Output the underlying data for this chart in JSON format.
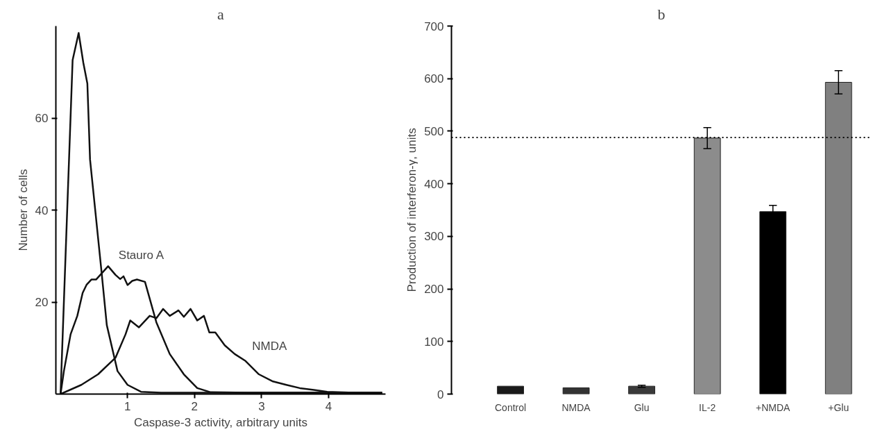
{
  "chart_data": [
    {
      "type": "line",
      "title": "a",
      "xlabel": "Caspase-3 activity, arbitrary units",
      "ylabel": "Number of cells",
      "xlim": [
        -0.07,
        4.85
      ],
      "ylim": [
        0,
        80
      ],
      "xticks": [
        1,
        2,
        3,
        4
      ],
      "yticks": [
        20,
        40,
        60
      ],
      "grid": false,
      "marker": "none",
      "line_style": "solid",
      "series": [
        {
          "color": "#111111",
          "x": [
            0,
            0.18,
            0.27,
            0.34,
            0.4,
            0.44,
            0.61,
            0.69,
            0.85,
            1.0,
            1.2,
            1.5,
            2.0,
            2.5,
            3.0,
            3.5,
            4.0,
            4.5,
            4.8
          ],
          "values": [
            0,
            72.6,
            78.5,
            72,
            67.5,
            51,
            26.8,
            15,
            5,
            2,
            0.5,
            0.3,
            0.3,
            0.3,
            0.3,
            0.3,
            0.3,
            0.3,
            0.3
          ]
        },
        {
          "name": "Stauro A",
          "color": "#111111",
          "x": [
            0,
            0.05,
            0.15,
            0.25,
            0.33,
            0.39,
            0.46,
            0.53,
            0.71,
            0.82,
            0.89,
            0.94,
            1.0,
            1.07,
            1.14,
            1.26,
            1.43,
            1.63,
            1.84,
            2.04,
            2.24,
            2.8,
            3.4,
            4.0,
            4.8
          ],
          "values": [
            0,
            5,
            13,
            17,
            22,
            23.8,
            24.9,
            24.9,
            27.8,
            25.9,
            25,
            25.6,
            23.7,
            24.6,
            24.9,
            24.4,
            15.6,
            8.7,
            4.3,
            1.3,
            0.4,
            0.3,
            0.3,
            0.3,
            0.3
          ]
        },
        {
          "name": "NMDA",
          "color": "#111111",
          "x": [
            0,
            0.31,
            0.56,
            0.82,
            0.97,
            1.04,
            1.17,
            1.33,
            1.43,
            1.53,
            1.63,
            1.76,
            1.84,
            1.94,
            2.04,
            2.14,
            2.22,
            2.31,
            2.45,
            2.6,
            2.76,
            2.96,
            3.16,
            3.37,
            3.57,
            3.78,
            3.98,
            4.39,
            4.8
          ],
          "values": [
            0,
            2,
            4.3,
            7.9,
            13,
            16,
            14.5,
            17,
            16.5,
            18.5,
            17,
            18.2,
            16.8,
            18.5,
            16,
            17,
            13.4,
            13.4,
            10.6,
            8.7,
            7.2,
            4.3,
            2.8,
            2,
            1.3,
            0.9,
            0.5,
            0.3,
            0.2
          ]
        }
      ]
    },
    {
      "type": "bar",
      "title": "b",
      "ylabel": "Production of interferon-γ, units",
      "categories": [
        "Control",
        "NMDA",
        "Glu",
        "IL-2",
        "+NMDA",
        "+Glu"
      ],
      "values": [
        15,
        12,
        15,
        487,
        347,
        593
      ],
      "colors": [
        "#1a1a1a",
        "#333333",
        "#3a3a3a",
        "#8c8c8c",
        "#000000",
        "#808080"
      ],
      "errors": [
        null,
        null,
        2,
        20,
        12,
        22
      ],
      "ylim": [
        0,
        700
      ],
      "yticks": [
        0,
        100,
        200,
        300,
        400,
        500,
        600,
        700
      ],
      "grid": false,
      "ref_lines": [
        {
          "axis": "y",
          "value": 488,
          "line_style": "dotted",
          "color": "#000000"
        }
      ]
    }
  ]
}
